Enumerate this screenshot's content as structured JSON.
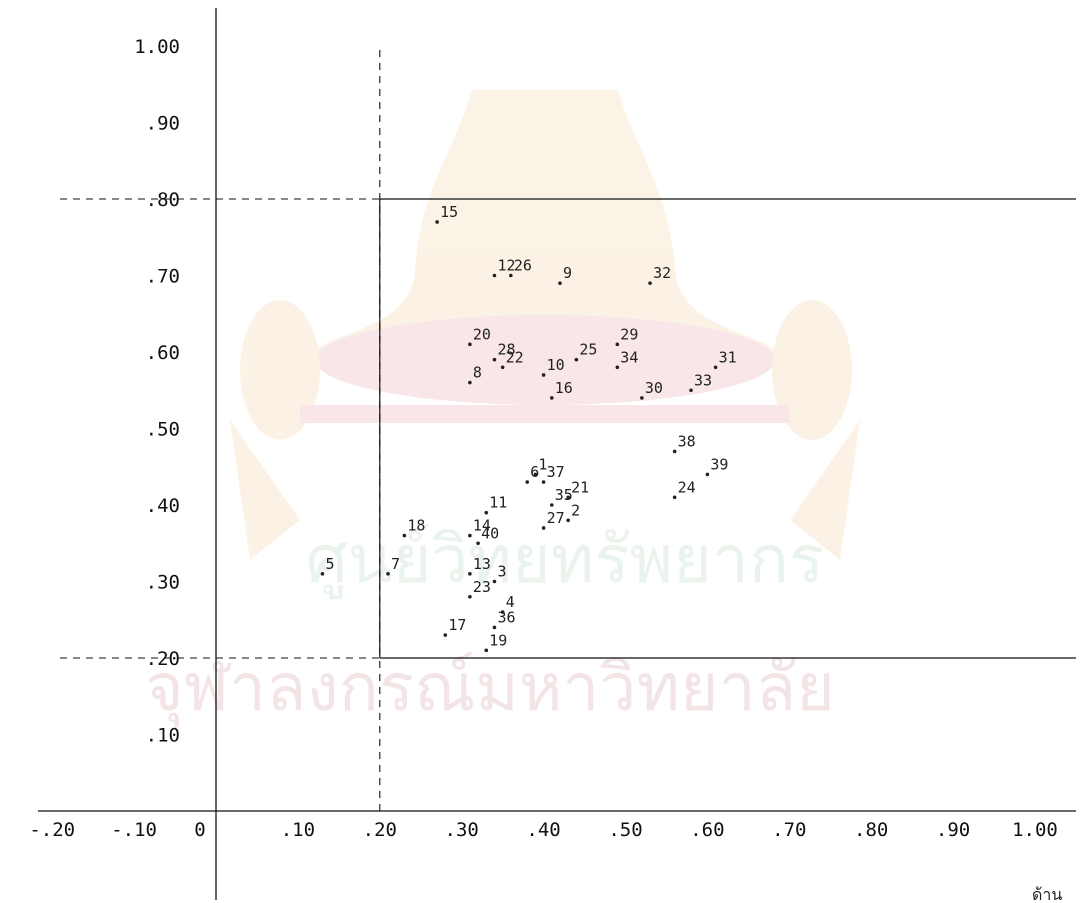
{
  "chart_data": {
    "type": "scatter",
    "title": "",
    "xlabel": "",
    "ylabel": "",
    "xlim": [
      -0.2,
      1.05
    ],
    "ylim": [
      0,
      1.0
    ],
    "x_ticks": [
      {
        "value": -0.2,
        "label": "-.20"
      },
      {
        "value": -0.1,
        "label": "-.10"
      },
      {
        "value": 0.0,
        "label": "0"
      },
      {
        "value": 0.1,
        "label": ".10"
      },
      {
        "value": 0.2,
        "label": ".20"
      },
      {
        "value": 0.3,
        "label": ".30"
      },
      {
        "value": 0.4,
        "label": ".40"
      },
      {
        "value": 0.5,
        "label": ".50"
      },
      {
        "value": 0.6,
        "label": ".60"
      },
      {
        "value": 0.7,
        "label": ".70"
      },
      {
        "value": 0.8,
        "label": ".80"
      },
      {
        "value": 0.9,
        "label": ".90"
      },
      {
        "value": 1.0,
        "label": "1.00"
      }
    ],
    "y_ticks": [
      {
        "value": 1.0,
        "label": "1.00"
      },
      {
        "value": 0.9,
        "label": ".90"
      },
      {
        "value": 0.8,
        "label": ".80"
      },
      {
        "value": 0.7,
        "label": ".70"
      },
      {
        "value": 0.6,
        "label": ".60"
      },
      {
        "value": 0.5,
        "label": ".50"
      },
      {
        "value": 0.4,
        "label": ".40"
      },
      {
        "value": 0.3,
        "label": ".30"
      },
      {
        "value": 0.2,
        "label": ".20"
      },
      {
        "value": 0.1,
        "label": ".10"
      }
    ],
    "reference_lines": {
      "x": 0.2,
      "y_low": 0.2,
      "y_high": 0.8
    },
    "grid": false,
    "points": [
      {
        "id": "15",
        "x": 0.27,
        "y": 0.77
      },
      {
        "id": "12",
        "x": 0.34,
        "y": 0.7
      },
      {
        "id": "26",
        "x": 0.36,
        "y": 0.7
      },
      {
        "id": "9",
        "x": 0.42,
        "y": 0.69
      },
      {
        "id": "32",
        "x": 0.53,
        "y": 0.69
      },
      {
        "id": "20",
        "x": 0.31,
        "y": 0.61
      },
      {
        "id": "28",
        "x": 0.34,
        "y": 0.59
      },
      {
        "id": "25",
        "x": 0.44,
        "y": 0.59
      },
      {
        "id": "29",
        "x": 0.49,
        "y": 0.61
      },
      {
        "id": "22",
        "x": 0.35,
        "y": 0.58
      },
      {
        "id": "10",
        "x": 0.4,
        "y": 0.57
      },
      {
        "id": "34",
        "x": 0.49,
        "y": 0.58
      },
      {
        "id": "31",
        "x": 0.61,
        "y": 0.58
      },
      {
        "id": "8",
        "x": 0.31,
        "y": 0.56
      },
      {
        "id": "33",
        "x": 0.58,
        "y": 0.55
      },
      {
        "id": "16",
        "x": 0.41,
        "y": 0.54
      },
      {
        "id": "30",
        "x": 0.52,
        "y": 0.54
      },
      {
        "id": "38",
        "x": 0.56,
        "y": 0.47
      },
      {
        "id": "39",
        "x": 0.6,
        "y": 0.44
      },
      {
        "id": "6",
        "x": 0.38,
        "y": 0.43
      },
      {
        "id": "37",
        "x": 0.4,
        "y": 0.43
      },
      {
        "id": "35",
        "x": 0.41,
        "y": 0.4
      },
      {
        "id": "21",
        "x": 0.43,
        "y": 0.41
      },
      {
        "id": "24",
        "x": 0.56,
        "y": 0.41
      },
      {
        "id": "11",
        "x": 0.33,
        "y": 0.39
      },
      {
        "id": "2",
        "x": 0.43,
        "y": 0.38
      },
      {
        "id": "18",
        "x": 0.23,
        "y": 0.36
      },
      {
        "id": "14",
        "x": 0.31,
        "y": 0.36
      },
      {
        "id": "40",
        "x": 0.32,
        "y": 0.35
      },
      {
        "id": "27",
        "x": 0.4,
        "y": 0.37
      },
      {
        "id": "5",
        "x": 0.13,
        "y": 0.31
      },
      {
        "id": "13",
        "x": 0.31,
        "y": 0.31
      },
      {
        "id": "3",
        "x": 0.34,
        "y": 0.3
      },
      {
        "id": "7",
        "x": 0.21,
        "y": 0.31
      },
      {
        "id": "23",
        "x": 0.31,
        "y": 0.28
      },
      {
        "id": "4",
        "x": 0.35,
        "y": 0.26
      },
      {
        "id": "17",
        "x": 0.28,
        "y": 0.23
      },
      {
        "id": "36",
        "x": 0.34,
        "y": 0.24
      },
      {
        "id": "19",
        "x": 0.33,
        "y": 0.21
      },
      {
        "id": "1",
        "x": 0.39,
        "y": 0.44
      }
    ]
  },
  "corner_text": "ด้าน",
  "watermark": {
    "line1": "ศูนย์วิทยทรัพยากร",
    "line2": "จุฬาลงกรณ์มหาวิทยาลัย"
  }
}
